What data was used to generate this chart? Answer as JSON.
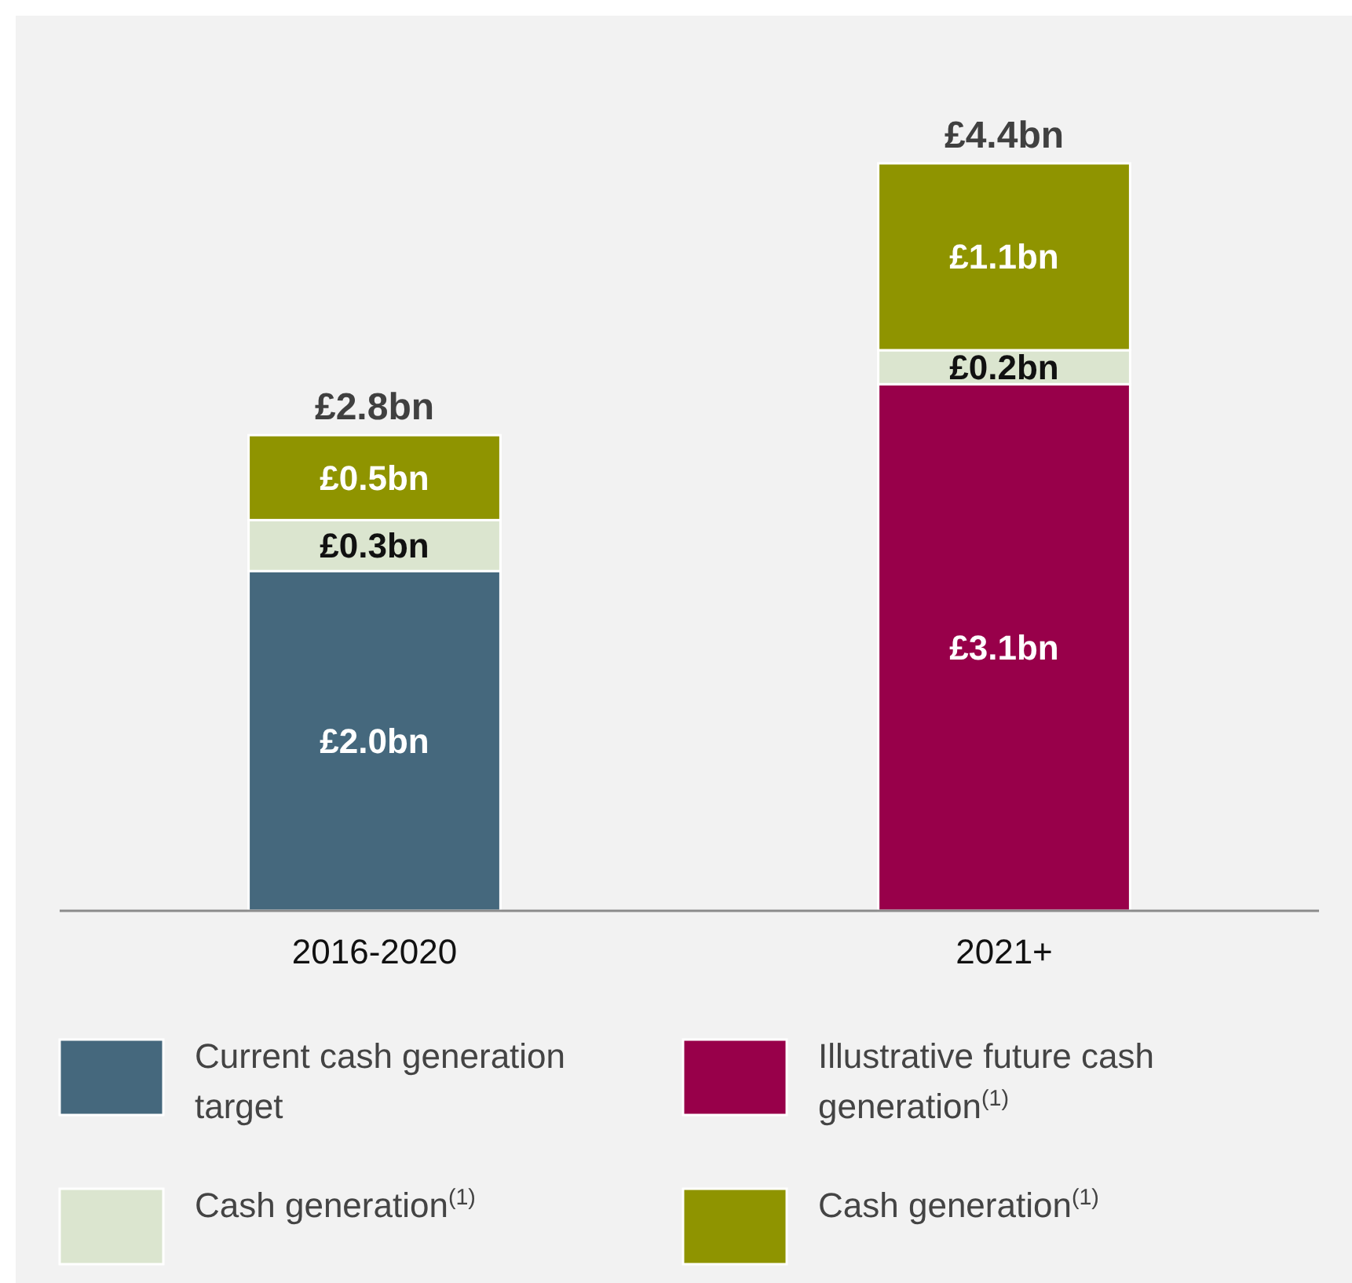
{
  "chart_data": {
    "type": "bar",
    "stacked": true,
    "categories": [
      "2016-2020",
      "2021+"
    ],
    "series": [
      {
        "name": "Current cash generation target",
        "color": "#45687d",
        "values": [
          2.0,
          null
        ],
        "value_labels": [
          "£2.0bn",
          null
        ]
      },
      {
        "name": "Illustrative future cash generation$^{(1)}$",
        "color": "#98004a",
        "values": [
          null,
          3.1
        ],
        "value_labels": [
          null,
          "£3.1bn"
        ]
      },
      {
        "name": "Cash generation$^{(1)}$",
        "color": "#dbe5cf",
        "values": [
          0.3,
          0.2
        ],
        "value_labels": [
          "£0.3bn",
          "£0.2bn"
        ]
      },
      {
        "name": "Cash generation$^{(1)}$",
        "color": "#8f9400",
        "values": [
          0.5,
          1.1
        ],
        "value_labels": [
          "£0.5bn",
          "£1.1bn"
        ]
      }
    ],
    "totals": [
      "£2.8bn",
      "£4.4bn"
    ],
    "tick_labels": "x",
    "legend": "bottom"
  }
}
